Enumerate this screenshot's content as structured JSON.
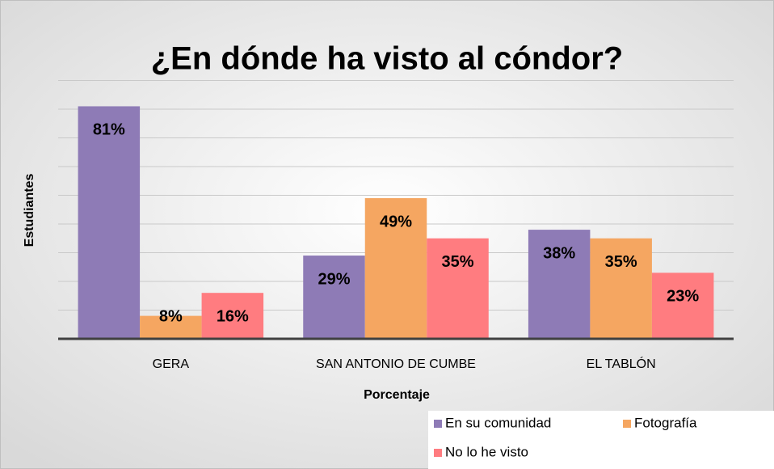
{
  "chart_data": {
    "type": "bar",
    "title": "¿En dónde ha visto al cóndor?",
    "x_label": "Porcentaje",
    "y_label": "Estudiantes",
    "categories": [
      "GERA",
      "SAN ANTONIO DE CUMBE",
      "EL TABLÓN"
    ],
    "series": [
      {
        "name": "En su comunidad",
        "color": "#8e7bb6",
        "values": [
          81,
          29,
          38
        ],
        "value_labels": [
          "81%",
          "29%",
          "38%"
        ]
      },
      {
        "name": "Fotografía",
        "color": "#f5a661",
        "values": [
          8,
          49,
          35
        ],
        "value_labels": [
          "8%",
          "49%",
          "35%"
        ]
      },
      {
        "name": "No lo he visto",
        "color": "#ff7c80",
        "values": [
          16,
          35,
          23
        ],
        "value_labels": [
          "16%",
          "35%",
          "23%"
        ]
      }
    ],
    "ylim": [
      0,
      90
    ],
    "yticks": [
      0,
      10,
      20,
      30,
      40,
      50,
      60,
      70,
      80,
      90
    ],
    "grid": true,
    "legend": "bottom-right"
  }
}
